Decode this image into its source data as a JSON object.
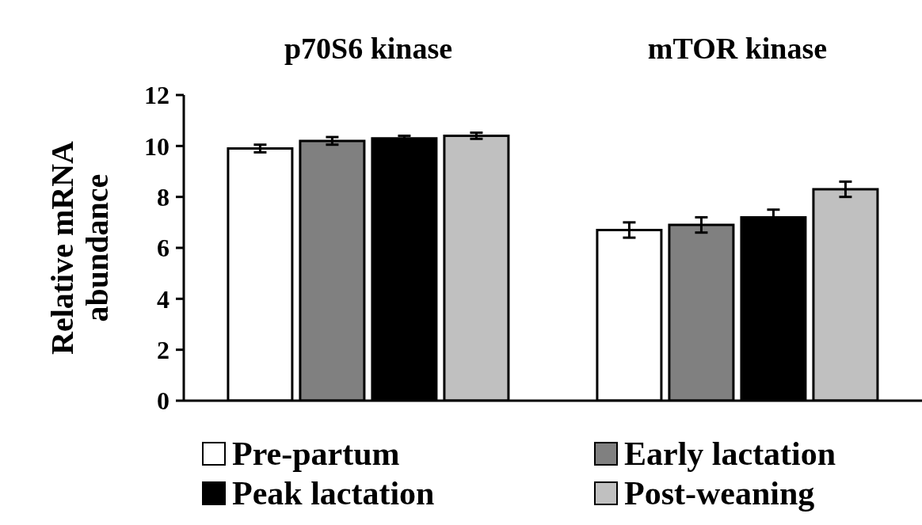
{
  "chart_data": {
    "type": "bar",
    "categories": [
      "p70S6 kinase",
      "mTOR kinase"
    ],
    "ylabel": "Relative mRNA abundance",
    "series": [
      {
        "name": "Pre-partum",
        "color": "#ffffff",
        "values": [
          9.9,
          6.7
        ],
        "errors": [
          0.15,
          0.3
        ]
      },
      {
        "name": "Early lactation",
        "color": "#808080",
        "values": [
          10.2,
          6.9
        ],
        "errors": [
          0.15,
          0.3
        ]
      },
      {
        "name": "Peak lactation",
        "color": "#000000",
        "values": [
          10.3,
          7.2
        ],
        "errors": [
          0.1,
          0.3
        ]
      },
      {
        "name": "Post-weaning",
        "color": "#c0c0c0",
        "values": [
          10.4,
          8.3
        ],
        "errors": [
          0.12,
          0.3
        ]
      }
    ],
    "ylim": [
      0,
      12
    ],
    "yticks": [
      0,
      2,
      4,
      6,
      8,
      10,
      12
    ],
    "grid": false,
    "legend": "bottom"
  }
}
